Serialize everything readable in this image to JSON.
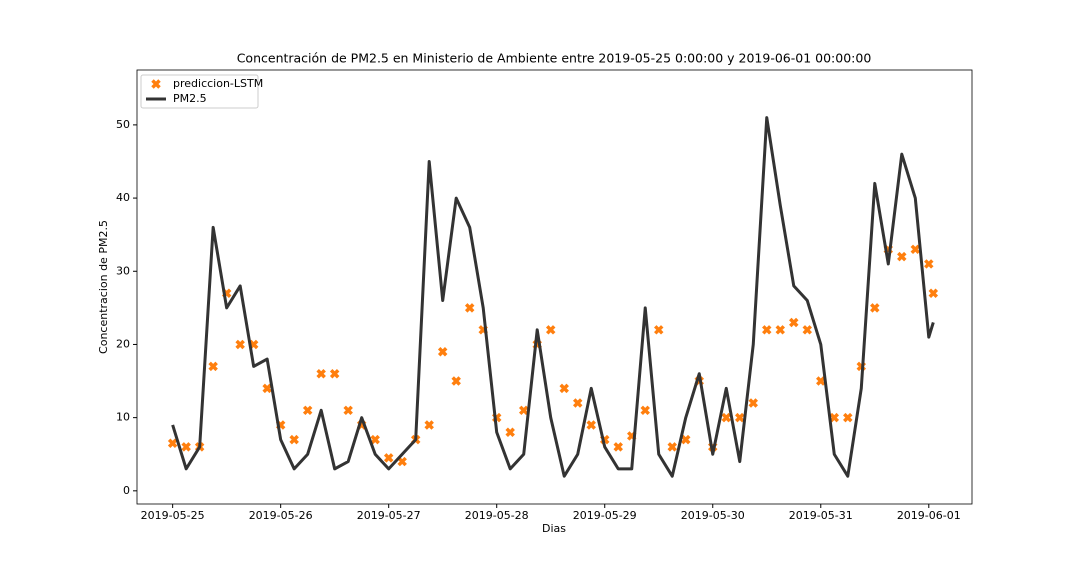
{
  "chart_data": {
    "type": "line",
    "title": "Concentración de PM2.5 en Ministerio de Ambiente entre 2019-05-25 0:00:00 y 2019-06-01 00:00:00",
    "x_label": "Dias",
    "y_label": "Concentracion de PM2.5",
    "x": [
      0,
      0.125,
      0.25,
      0.375,
      0.5,
      0.625,
      0.75,
      0.875,
      1,
      1.125,
      1.25,
      1.375,
      1.5,
      1.625,
      1.75,
      1.875,
      2,
      2.125,
      2.25,
      2.375,
      2.5,
      2.625,
      2.75,
      2.875,
      3,
      3.125,
      3.25,
      3.375,
      3.5,
      3.625,
      3.75,
      3.875,
      4,
      4.125,
      4.25,
      4.375,
      4.5,
      4.625,
      4.75,
      4.875,
      5,
      5.125,
      5.25,
      5.375,
      5.5,
      5.625,
      5.75,
      5.875,
      6,
      6.125,
      6.25,
      6.375,
      6.5,
      6.625,
      6.75,
      6.875,
      7,
      7.0417
    ],
    "series": [
      {
        "name": "prediccion-LSTM",
        "type": "scatter",
        "color": "#ff7f0e",
        "values": [
          6.5,
          6,
          6,
          17,
          27,
          20,
          20,
          14,
          9,
          7,
          11,
          16,
          16,
          11,
          9,
          7,
          4.5,
          4,
          7,
          9,
          19,
          15,
          25,
          22,
          10,
          8,
          11,
          20,
          22,
          14,
          12,
          9,
          7,
          6,
          7.5,
          11,
          22,
          6,
          7,
          15,
          6,
          10,
          10,
          12,
          22,
          22,
          23,
          22,
          15,
          10,
          10,
          17,
          25,
          33,
          32,
          33,
          31,
          27
        ]
      },
      {
        "name": "PM2.5",
        "type": "line",
        "color": "#333333",
        "values": [
          9,
          3,
          6,
          36,
          25,
          28,
          17,
          18,
          7,
          3,
          5,
          11,
          3,
          4,
          10,
          5,
          3,
          5,
          7,
          45,
          26,
          40,
          36,
          25,
          8,
          3,
          5,
          22,
          10,
          2,
          5,
          14,
          6,
          3,
          3,
          25,
          5,
          2,
          10,
          16,
          5,
          14,
          4,
          20,
          51,
          39,
          28,
          26,
          20,
          5,
          2,
          14,
          42,
          31,
          46,
          40,
          21,
          23
        ]
      }
    ],
    "xlim": [
      -0.33,
      7.4
    ],
    "ylim": [
      -1.8,
      57.5
    ],
    "xticks": [
      {
        "value": 0,
        "label": "2019-05-25"
      },
      {
        "value": 1,
        "label": "2019-05-26"
      },
      {
        "value": 2,
        "label": "2019-05-27"
      },
      {
        "value": 3,
        "label": "2019-05-28"
      },
      {
        "value": 4,
        "label": "2019-05-29"
      },
      {
        "value": 5,
        "label": "2019-05-30"
      },
      {
        "value": 6,
        "label": "2019-05-31"
      },
      {
        "value": 7,
        "label": "2019-06-01"
      }
    ],
    "yticks": [
      0,
      10,
      20,
      30,
      40,
      50
    ],
    "legend": "upper left",
    "grid": false
  }
}
